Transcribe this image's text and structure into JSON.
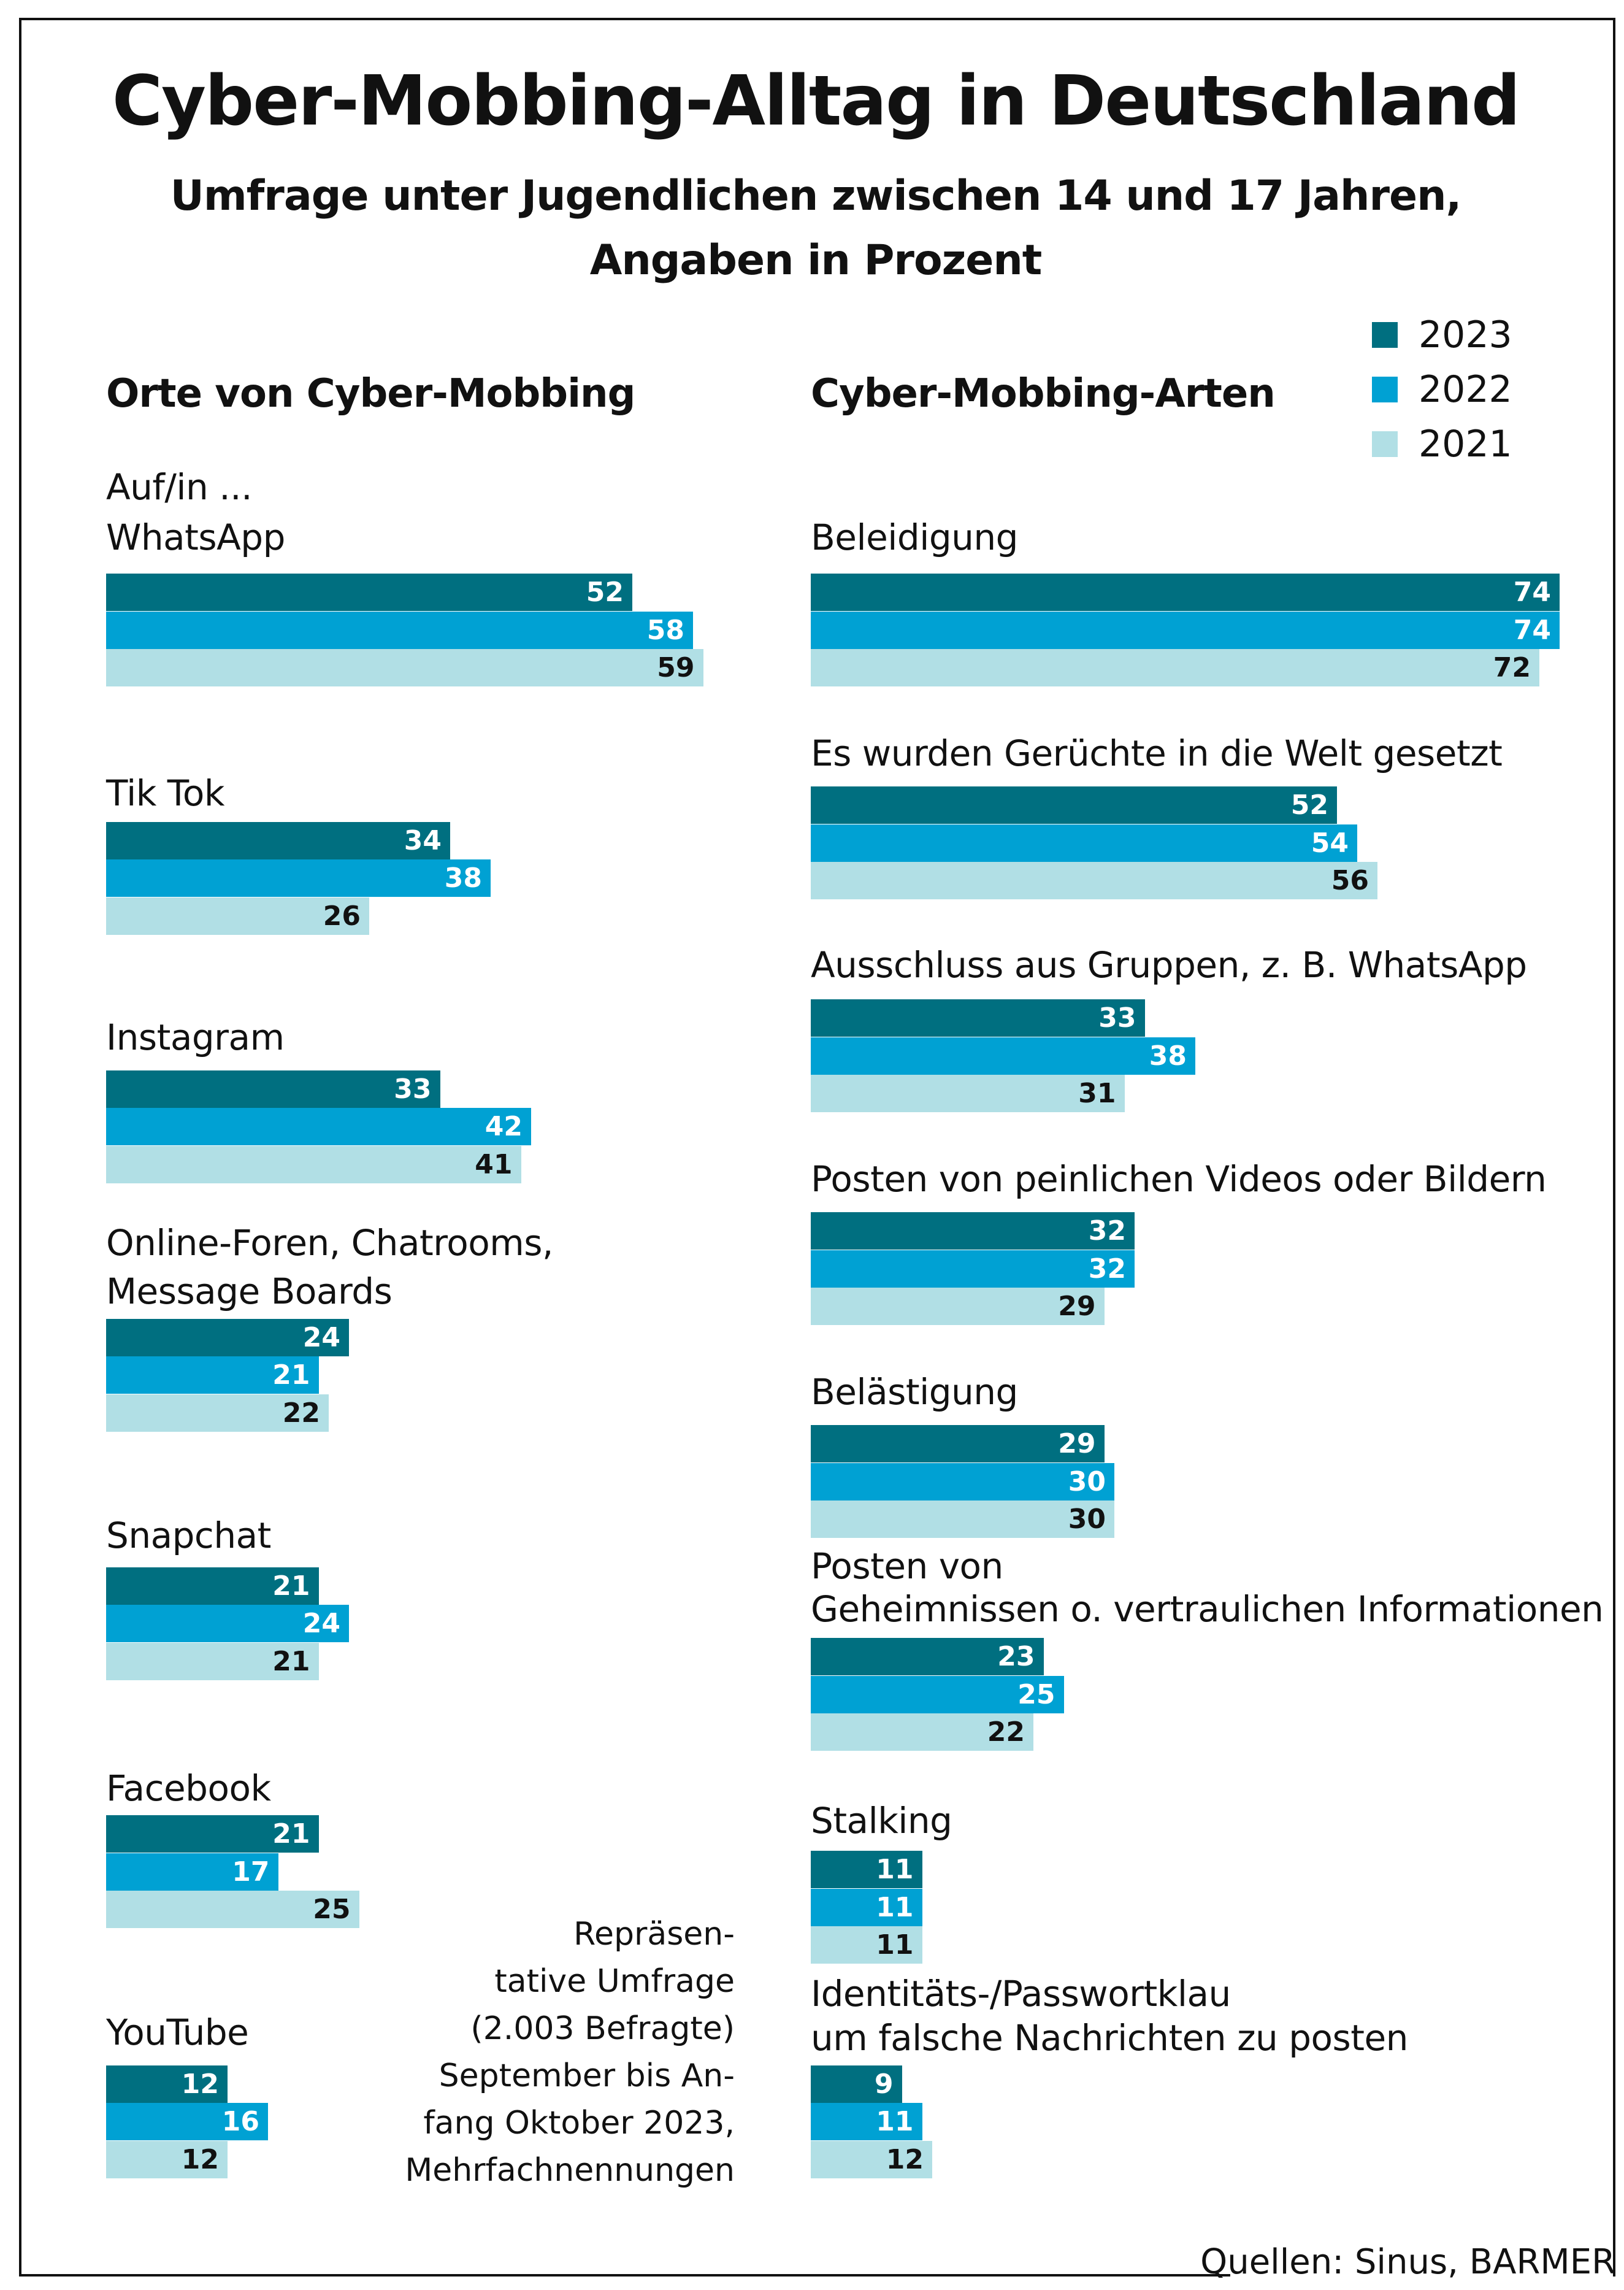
{
  "title": "Cyber-Mobbing-Alltag in Deutschland",
  "subtitle_lines": [
    "Umfrage unter Jugendlichen zwischen 14 und 17 Jahren,",
    "Angaben in Prozent"
  ],
  "colors": {
    "2023": "#006f80",
    "2022": "#00a1d3",
    "2021": "#b1dfe5"
  },
  "legend": [
    "2023",
    "2022",
    "2021"
  ],
  "note_lines": [
    "Repräsen-",
    "tative Umfrage",
    "(2.003 Befragte)",
    "September bis An-",
    "fang Oktober 2023,",
    "Mehrfachnennungen"
  ],
  "source": "Quellen: Sinus, BARMER",
  "chart_data": [
    {
      "type": "bar",
      "orientation": "horizontal",
      "title": "Orte von Cyber-Mobbing",
      "intro": "Auf/in ...",
      "series_names": [
        "2023",
        "2022",
        "2021"
      ],
      "categories": [
        {
          "label": [
            "WhatsApp"
          ],
          "values": [
            52,
            58,
            59
          ]
        },
        {
          "label": [
            "Tik Tok"
          ],
          "values": [
            34,
            38,
            26
          ]
        },
        {
          "label": [
            "Instagram"
          ],
          "values": [
            33,
            42,
            41
          ]
        },
        {
          "label": [
            "Online-Foren, Chatrooms,",
            "Message Boards"
          ],
          "values": [
            24,
            21,
            22
          ]
        },
        {
          "label": [
            "Snapchat"
          ],
          "values": [
            21,
            24,
            21
          ]
        },
        {
          "label": [
            "Facebook"
          ],
          "values": [
            21,
            17,
            25
          ]
        },
        {
          "label": [
            "YouTube"
          ],
          "values": [
            12,
            16,
            12
          ]
        }
      ]
    },
    {
      "type": "bar",
      "orientation": "horizontal",
      "title": "Cyber-Mobbing-Arten",
      "series_names": [
        "2023",
        "2022",
        "2021"
      ],
      "categories": [
        {
          "label": [
            "Beleidigung"
          ],
          "values": [
            74,
            74,
            72
          ]
        },
        {
          "label": [
            "Es wurden Gerüchte in die Welt gesetzt"
          ],
          "values": [
            52,
            54,
            56
          ]
        },
        {
          "label": [
            "Ausschluss aus Gruppen,  z. B. WhatsApp"
          ],
          "values": [
            33,
            38,
            31
          ]
        },
        {
          "label": [
            "Posten von peinlichen Videos oder Bildern"
          ],
          "values": [
            32,
            32,
            29
          ]
        },
        {
          "label": [
            "Belästigung"
          ],
          "values": [
            29,
            30,
            30
          ]
        },
        {
          "label": [
            "Posten von",
            "Geheimnissen o. vertraulichen Informationen"
          ],
          "values": [
            23,
            25,
            22
          ]
        },
        {
          "label": [
            "Stalking"
          ],
          "values": [
            11,
            11,
            11
          ]
        },
        {
          "label": [
            "Identitäts-/Passwortklau",
            "um falsche Nachrichten zu posten"
          ],
          "values": [
            9,
            11,
            12
          ]
        }
      ]
    }
  ]
}
